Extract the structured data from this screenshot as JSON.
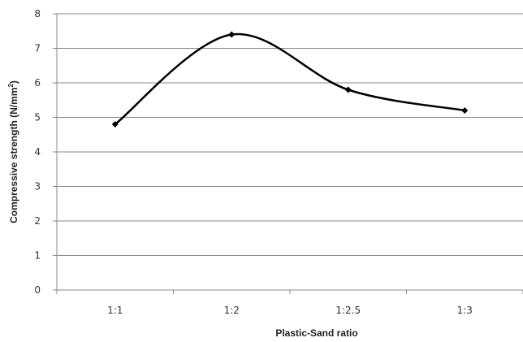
{
  "chart_data": {
    "type": "line",
    "title": "",
    "xlabel": "Plastic-Sand ratio",
    "ylabel_main": "Compressive strength (N/mm",
    "ylabel_sup": "2",
    "ylabel_close": ")",
    "categories": [
      "1:1",
      "1:2",
      "1:2.5",
      "1:3"
    ],
    "series": [
      {
        "values": [
          4.8,
          7.4,
          5.8,
          5.2
        ]
      }
    ],
    "ylim": [
      0,
      8
    ],
    "yticks": [
      "0",
      "1",
      "2",
      "3",
      "4",
      "5",
      "6",
      "7",
      "8"
    ],
    "grid": true,
    "smooth": true,
    "marker": "diamond",
    "line_color": "#000000",
    "grid_color": "#8a8a8a"
  }
}
